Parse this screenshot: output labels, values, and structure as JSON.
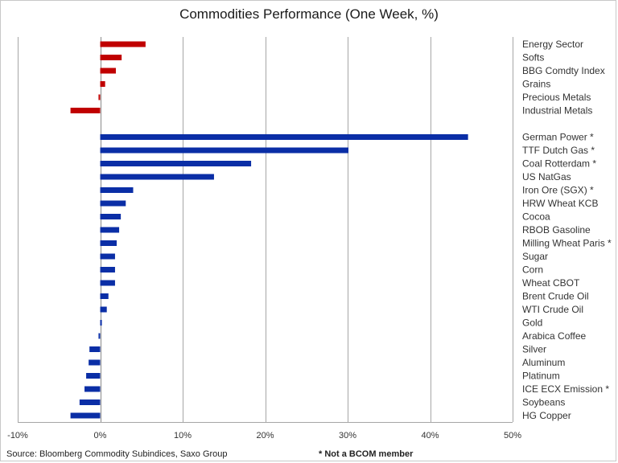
{
  "chart_data": {
    "type": "bar",
    "orientation": "horizontal",
    "title": "Commodities Performance (One Week, %)",
    "xlabel": "",
    "ylabel": "",
    "xlim": [
      -10,
      50
    ],
    "x_ticks": [
      -10,
      0,
      10,
      20,
      30,
      40,
      50
    ],
    "x_tick_labels": [
      "-10%",
      "0%",
      "10%",
      "20%",
      "30%",
      "40%",
      "50%"
    ],
    "grid": "vertical",
    "legend": "none",
    "groups": [
      {
        "color": "#c00000",
        "categories": [
          "Energy Sector",
          "Softs",
          "BBG Comdty Index",
          "Grains",
          "Precious Metals",
          "Industrial Metals"
        ],
        "values": [
          5.5,
          2.6,
          1.9,
          0.6,
          -0.2,
          -3.6
        ]
      },
      {
        "color": "#0a2ea6",
        "categories": [
          "German Power *",
          "TTF Dutch Gas *",
          "Coal Rotterdam *",
          "US NatGas",
          "Iron Ore (SGX) *",
          "HRW Wheat KCB",
          "Cocoa",
          "RBOB Gasoline",
          "Milling Wheat Paris *",
          "Sugar",
          "Corn",
          "Wheat CBOT",
          "Brent Crude Oil",
          "WTI Crude Oil",
          "Gold",
          "Arabica Coffee",
          "Silver",
          "Aluminum",
          "Platinum",
          "ICE ECX Emission *",
          "Soybeans",
          "HG Copper"
        ],
        "values": [
          44.6,
          30.1,
          18.3,
          13.8,
          4.0,
          3.1,
          2.5,
          2.3,
          2.0,
          1.8,
          1.8,
          1.8,
          1.0,
          0.8,
          0.2,
          -0.2,
          -1.3,
          -1.4,
          -1.7,
          -1.9,
          -2.5,
          -3.6
        ]
      }
    ]
  },
  "source": "Source: Bloomberg Commodity Subindices, Saxo Group",
  "footnote": "* Not a BCOM member"
}
